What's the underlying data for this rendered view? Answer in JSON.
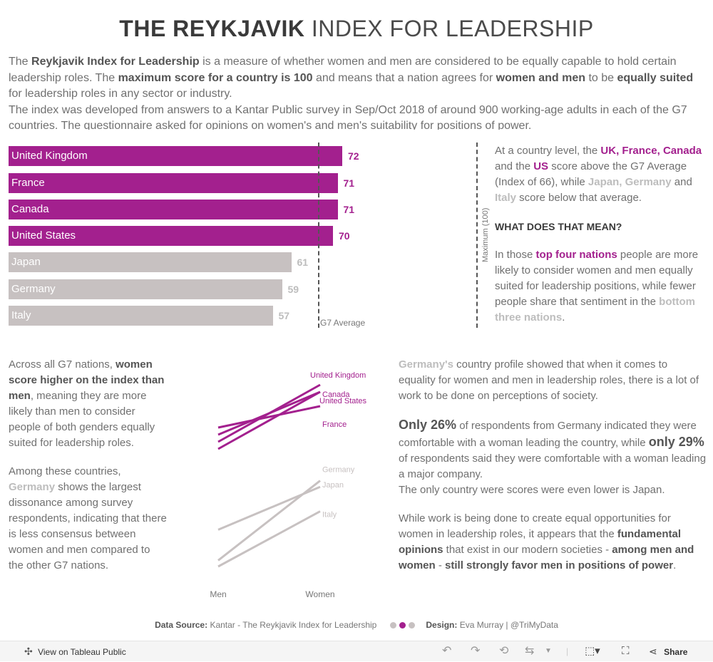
{
  "title": {
    "bold": "THE REYKJAVIK",
    "light": "INDEX FOR LEADERSHIP"
  },
  "intro": {
    "p1_a": "The ",
    "p1_b": "Reykjavik Index for Leadership",
    "p1_c": " is a measure of whether women and men are considered to be equally capable to hold certain leadership roles. The ",
    "p1_d": "maximum score for a country is 100",
    "p1_e": " and means that a nation agrees for ",
    "p1_f": "women and men",
    "p1_g": " to be ",
    "p1_h": "equally suited",
    "p1_i": " for leadership roles in any sector or industry.",
    "p2": "The index was developed from answers to a Kantar Public survey in Sep/Oct 2018 of around 900 working-age adults in each of the G7 countries. The questionnaire asked for opinions on women's and men's suitability for positions of power."
  },
  "colors": {
    "pink": "#a3208e",
    "grey": "#c7c1c1",
    "grey_text": "#bdbdbd"
  },
  "chart_data": [
    {
      "type": "bar",
      "orientation": "horizontal",
      "categories": [
        "United Kingdom",
        "France",
        "Canada",
        "United States",
        "Japan",
        "Germany",
        "Italy"
      ],
      "values": [
        72,
        71,
        71,
        70,
        61,
        59,
        57
      ],
      "highlight": [
        true,
        true,
        true,
        true,
        false,
        false,
        false
      ],
      "reference_lines": [
        {
          "label": "G7 Average",
          "value": 66
        },
        {
          "label": "Maximum (100)",
          "value": 100
        }
      ],
      "xlim": [
        0,
        100
      ]
    },
    {
      "type": "line",
      "x": [
        "Men",
        "Women"
      ],
      "series": [
        {
          "name": "United Kingdom",
          "values": [
            64,
            80
          ],
          "highlight": true
        },
        {
          "name": "Canada",
          "values": [
            66,
            78
          ],
          "highlight": true
        },
        {
          "name": "United States",
          "values": [
            62,
            78
          ],
          "highlight": true
        },
        {
          "name": "France",
          "values": [
            68,
            74
          ],
          "highlight": true
        },
        {
          "name": "Germany",
          "values": [
            46,
            72
          ],
          "highlight": false
        },
        {
          "name": "Japan",
          "values": [
            56,
            70
          ],
          "highlight": false
        },
        {
          "name": "Italy",
          "values": [
            44,
            62
          ],
          "highlight": false
        }
      ],
      "ylim": [
        40,
        90
      ]
    }
  ],
  "side": {
    "t1": "At a country level, the ",
    "t2": "UK, France, Canada",
    "t3": " and the ",
    "t4": "US",
    "t5": " score above the G7 Average (Index of 66), while ",
    "t6": "Japan, Germany",
    "t7": " and ",
    "t8": "Italy",
    "t9": " score below that average.",
    "heading": "WHAT DOES THAT MEAN?",
    "m1": "In those ",
    "m2": "top four nations",
    "m3": " people are more likely to consider women and men equally suited for leadership positions, while fewer people share that sentiment in the ",
    "m4": "bottom three nations",
    "m5": "."
  },
  "left_text": {
    "a1": "Across all G7 nations, ",
    "a2": "women score higher on the index than men",
    "a3": ", meaning they are more likely than men to consider people of both genders equally suited for leadership roles.",
    "b1": "Among these countries, ",
    "b2": "Germany",
    "b3": " shows the largest dissonance among survey respondents, indicating that there is less consensus between women and men compared to the other G7 nations."
  },
  "right_text": {
    "a1": "Germany's",
    "a2": " country profile showed that when it comes to equality for women and men in leadership roles, there is a lot of work to be done on perceptions of society.",
    "b1": "Only 26%",
    "b2": " of respondents from Germany indicated they were comfortable with a woman leading the country, while ",
    "b3": "only 29%",
    "b4": " of respondents said they were comfortable with a woman leading a major company.",
    "b5": "The only country were scores were even lower is Japan.",
    "c1": "While work is being done to create equal opportunities for women in leadership roles, it appears that the ",
    "c2": "fundamental opinions",
    "c3": " that exist in our modern societies - ",
    "c4": "among men and women",
    "c5": " - ",
    "c6": "still strongly favor men in positions of power",
    "c7": "."
  },
  "footer": {
    "source_label": "Data Source:",
    "source": "Kantar - The Reykjavik Index for Leadership",
    "design_label": "Design:",
    "design": "Eva Murray | @TriMyData"
  },
  "toolbar": {
    "view_label": "View on Tableau Public",
    "share_label": "Share"
  }
}
